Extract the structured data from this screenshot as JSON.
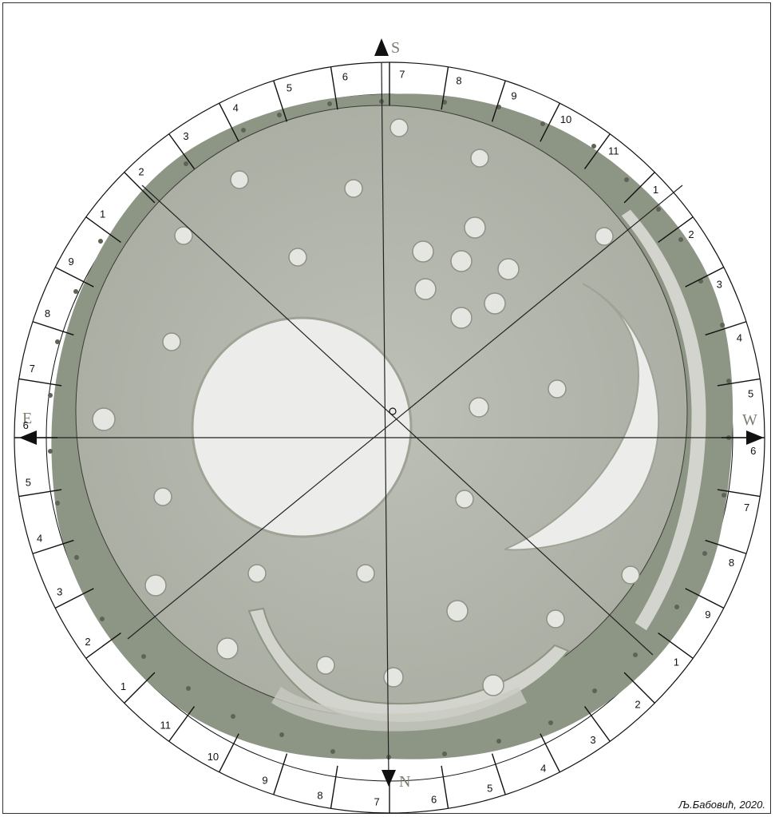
{
  "cardinals": {
    "south": "S",
    "north": "N",
    "east": "E",
    "west": "W"
  },
  "scale": {
    "top_labels": [
      "6",
      "7",
      "8",
      "9",
      "10",
      "11",
      "1",
      "2",
      "3",
      "4",
      "5",
      "6",
      "7",
      "8",
      "9",
      "1",
      "2",
      "3",
      "4",
      "5",
      "6",
      "7",
      "8",
      "9",
      "10",
      "11",
      "1",
      "2",
      "3",
      "4",
      "5",
      "6",
      "7",
      "8",
      "9",
      "1",
      "2",
      "3",
      "4",
      "5"
    ]
  },
  "credit": "Љ.Бабовић, 2020.",
  "colors": {
    "disc_rim": "#8d9585",
    "disc_face": "#b3b7ad",
    "gold": "#ececea",
    "line": "#222222"
  }
}
